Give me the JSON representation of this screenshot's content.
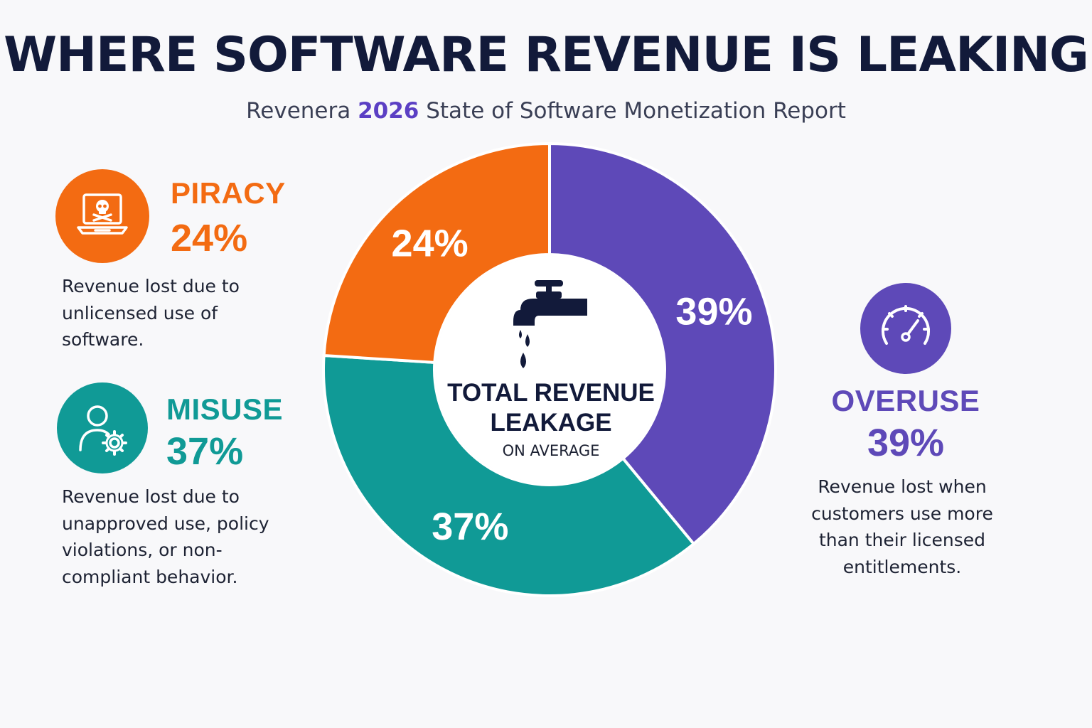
{
  "title": "WHERE SOFTWARE REVENUE IS LEAKING",
  "subtitle": {
    "prefix": "Revenera ",
    "year": "2026",
    "suffix": " State of Software Monetization Report"
  },
  "colors": {
    "piracy": "#f36b12",
    "misuse": "#109a96",
    "overuse": "#5e49b8",
    "title": "#121a3a",
    "year": "#5b3fc4"
  },
  "center": {
    "line1": "TOTAL REVENUE",
    "line2": "LEAKAGE",
    "line3": "ON AVERAGE",
    "icon": "faucet-drip-icon"
  },
  "categories": {
    "piracy": {
      "name": "PIRACY",
      "percent": "24%",
      "icon": "laptop-skull-icon",
      "desc": [
        "Revenue lost due to",
        "unlicensed use of",
        "software."
      ]
    },
    "misuse": {
      "name": "MISUSE",
      "percent": "37%",
      "icon": "user-gear-icon",
      "desc": [
        "Revenue lost due to",
        "unapproved use, policy",
        "violations, or non-",
        "compliant behavior."
      ]
    },
    "overuse": {
      "name": "OVERUSE",
      "percent": "39%",
      "icon": "gauge-icon",
      "desc": [
        "Revenue lost when",
        "customers use more",
        "than their licensed",
        "entitlements."
      ]
    }
  },
  "chart_data": {
    "type": "pie",
    "style": "donut",
    "slices": [
      {
        "label": "39%",
        "value": 39,
        "color": "#5e49b8"
      },
      {
        "label": "37%",
        "value": 37,
        "color": "#109a96"
      },
      {
        "label": "24%",
        "value": 24,
        "color": "#f36b12"
      }
    ],
    "start": "top",
    "direction": "clockwise"
  }
}
